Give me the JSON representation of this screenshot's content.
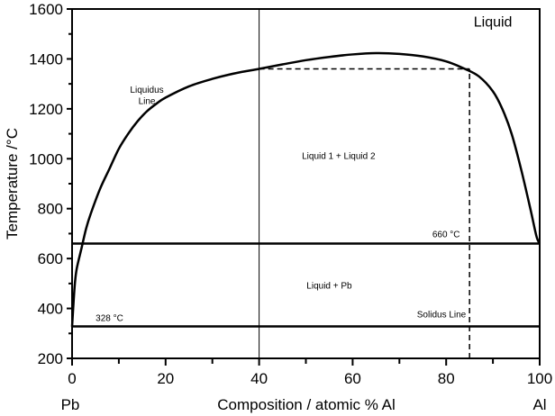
{
  "chart_data": {
    "type": "line",
    "title": "",
    "xlabel": "Composition / atomic % Al",
    "ylabel": "Temperature /°C",
    "xlim": [
      0,
      100
    ],
    "ylim": [
      200,
      1600
    ],
    "x_ticks": [
      0,
      20,
      40,
      60,
      80,
      100
    ],
    "y_ticks": [
      200,
      400,
      600,
      800,
      1000,
      1200,
      1400,
      1600
    ],
    "end_labels": {
      "left": "Pb",
      "right": "Al"
    },
    "grid": false,
    "legend": "none",
    "series": [
      {
        "name": "Liquidus Line",
        "points": [
          [
            0,
            327
          ],
          [
            0.3,
            420
          ],
          [
            0.6,
            500
          ],
          [
            1,
            560
          ],
          [
            2,
            640
          ],
          [
            3,
            720
          ],
          [
            4,
            780
          ],
          [
            6,
            880
          ],
          [
            8,
            960
          ],
          [
            10,
            1040
          ],
          [
            12,
            1100
          ],
          [
            14,
            1150
          ],
          [
            16,
            1190
          ],
          [
            18,
            1220
          ],
          [
            20,
            1245
          ],
          [
            25,
            1290
          ],
          [
            30,
            1320
          ],
          [
            35,
            1343
          ],
          [
            40,
            1360
          ],
          [
            45,
            1378
          ],
          [
            50,
            1395
          ],
          [
            55,
            1408
          ],
          [
            60,
            1418
          ],
          [
            65,
            1423
          ],
          [
            70,
            1420
          ],
          [
            75,
            1410
          ],
          [
            80,
            1390
          ],
          [
            84,
            1360
          ],
          [
            87,
            1330
          ],
          [
            90,
            1270
          ],
          [
            92,
            1200
          ],
          [
            94,
            1100
          ],
          [
            96,
            960
          ],
          [
            98,
            800
          ],
          [
            99.3,
            690
          ],
          [
            100,
            660
          ]
        ]
      }
    ],
    "horizontal_lines": [
      {
        "label": "660 °C",
        "y": 660
      },
      {
        "label": "328 °C",
        "y": 328
      }
    ],
    "vertical_lines": [
      {
        "x": 40,
        "y_from": 200,
        "y_to": 1600,
        "style": "solid"
      }
    ],
    "dashed_guides": [
      {
        "x_from": 40,
        "x_to": 85,
        "y_from": 1360,
        "y_to": 1360
      },
      {
        "x_from": 85,
        "x_to": 85,
        "y_from": 200,
        "y_to": 1360
      }
    ],
    "annotations": [
      {
        "text": "Liquid",
        "x": 90,
        "y": 1530,
        "size": "large"
      },
      {
        "text": "Liquidus",
        "x": 16,
        "y": 1265,
        "size": "small"
      },
      {
        "text": "Line",
        "x": 16,
        "y": 1220,
        "size": "small"
      },
      {
        "text": "Liquid 1 + Liquid 2",
        "x": 57,
        "y": 1000,
        "size": "small"
      },
      {
        "text": "Liquid + Pb",
        "x": 55,
        "y": 480,
        "size": "small"
      },
      {
        "text": "660 °C",
        "x": 80,
        "y": 685,
        "size": "small"
      },
      {
        "text": "328 °C",
        "x": 8,
        "y": 350,
        "size": "small"
      },
      {
        "text": "Solidus Line",
        "x": 79,
        "y": 365,
        "size": "small"
      }
    ]
  }
}
